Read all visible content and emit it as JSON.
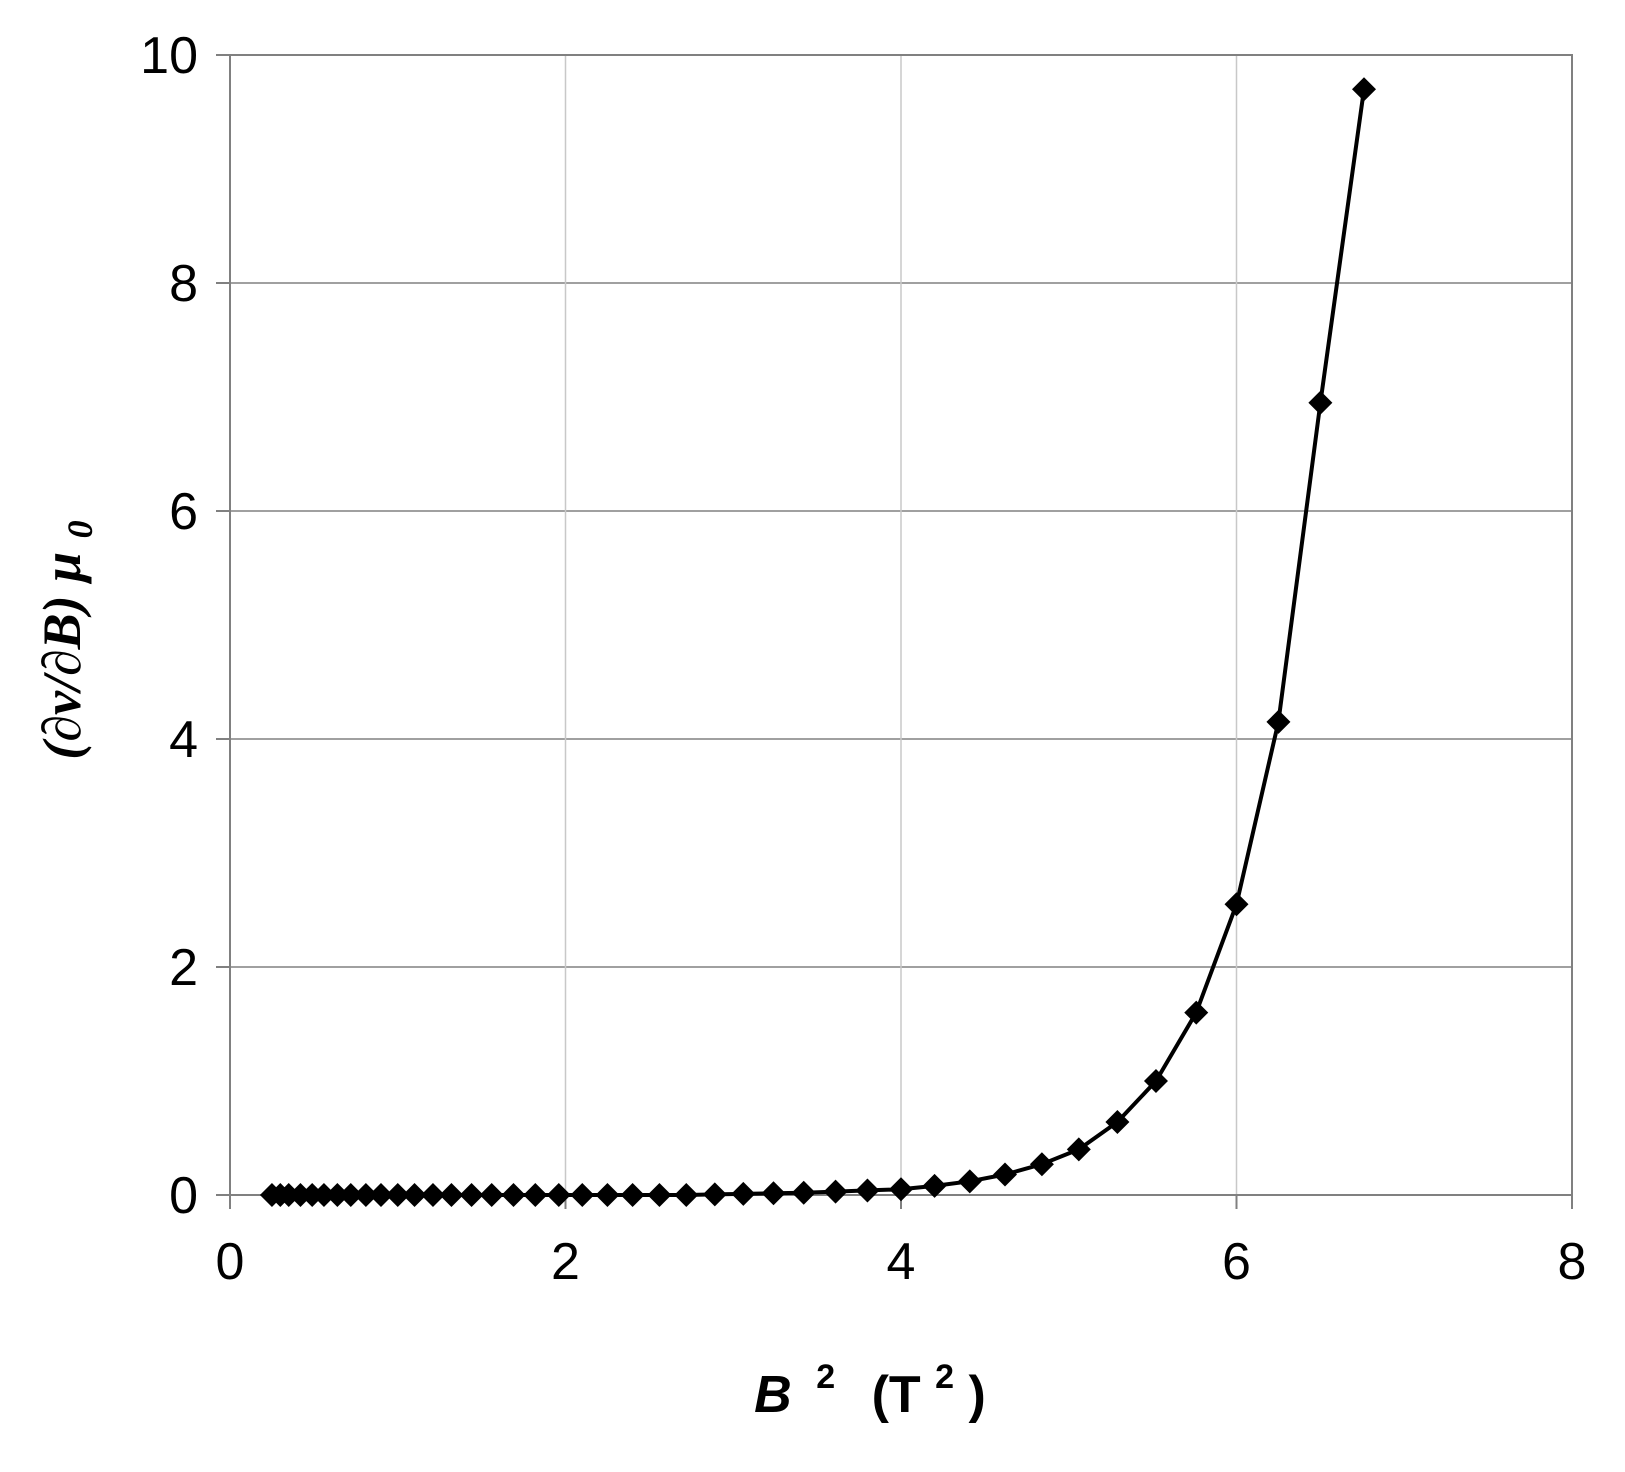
{
  "chart_data": {
    "type": "line",
    "title": "",
    "xlabel": {
      "symbol": "B",
      "exponent": "2",
      "unit_open": "(T",
      "unit_exponent": "2",
      "unit_close": ")"
    },
    "ylabel": {
      "text": "(∂ν/∂B) ",
      "symbol": "μ",
      "subscript": "0"
    },
    "xlim": [
      0,
      8
    ],
    "ylim": [
      0,
      10
    ],
    "x_ticks": [
      "0",
      "2",
      "4",
      "6",
      "8"
    ],
    "y_ticks": [
      "0",
      "2",
      "4",
      "6",
      "8",
      "10"
    ],
    "grid": true,
    "legend": "none",
    "marker": "diamond",
    "line_color": "#000000",
    "series": [
      {
        "x": [
          0.25,
          0.3,
          0.35,
          0.42,
          0.49,
          0.56,
          0.64,
          0.72,
          0.81,
          0.9,
          1.0,
          1.1,
          1.21,
          1.32,
          1.44,
          1.56,
          1.69,
          1.82,
          1.96,
          2.1,
          2.25,
          2.4,
          2.56,
          2.72,
          2.89,
          3.06,
          3.24,
          3.42,
          3.61,
          3.8,
          4.0,
          4.2,
          4.41,
          4.62,
          4.84,
          5.06,
          5.29,
          5.52,
          5.76,
          6.0,
          6.25,
          6.5,
          6.76
        ],
        "y": [
          0,
          0,
          0,
          0,
          0,
          0,
          0,
          0,
          0,
          0,
          0,
          0,
          0,
          0,
          0,
          0,
          0,
          0,
          0,
          0,
          0,
          0,
          0,
          0,
          0.005,
          0.01,
          0.015,
          0.02,
          0.03,
          0.04,
          0.05,
          0.08,
          0.12,
          0.18,
          0.27,
          0.4,
          0.64,
          1.0,
          1.6,
          2.55,
          4.15,
          6.95,
          9.7
        ]
      }
    ]
  }
}
